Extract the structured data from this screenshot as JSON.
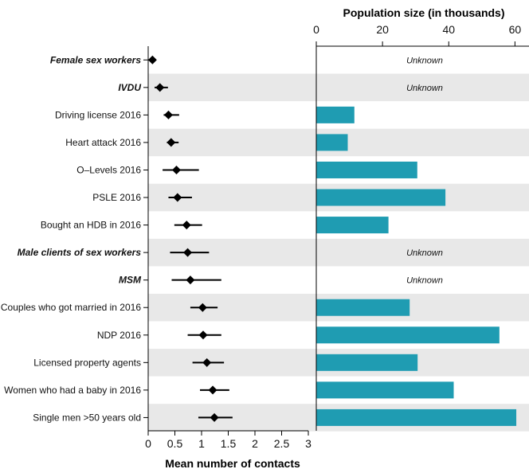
{
  "chart_data": [
    {
      "type": "scatter",
      "categories": [
        "Female sex workers",
        "IVDU",
        "Driving license 2016",
        "Heart attack 2016",
        "O–Levels 2016",
        "PSLE 2016",
        "Bought an HDB in 2016",
        "Male clients of sex workers",
        "MSM",
        "Couples who got married in 2016",
        "NDP 2016",
        "Licensed property agents",
        "Women who had a baby in 2016",
        "Single men >50 years old"
      ],
      "highlighted": [
        true,
        true,
        false,
        false,
        false,
        false,
        false,
        true,
        true,
        false,
        false,
        false,
        false,
        false
      ],
      "x": [
        0.08,
        0.22,
        0.38,
        0.43,
        0.53,
        0.55,
        0.72,
        0.74,
        0.79,
        1.02,
        1.03,
        1.1,
        1.21,
        1.24
      ],
      "x_low": [
        null,
        0.12,
        0.29,
        0.35,
        0.27,
        0.38,
        0.49,
        0.41,
        0.44,
        0.79,
        0.74,
        0.83,
        0.97,
        0.94
      ],
      "x_high": [
        null,
        0.37,
        0.58,
        0.57,
        0.95,
        0.82,
        1.01,
        1.14,
        1.37,
        1.3,
        1.37,
        1.42,
        1.52,
        1.58
      ],
      "xlabel": "Mean number of contacts",
      "xlim": [
        0,
        3
      ],
      "xticks": [
        "0",
        "0.5",
        "1",
        "1.5",
        "2",
        "2.5",
        "3"
      ],
      "grid": "alternating row bands"
    },
    {
      "type": "bar",
      "orientation": "horizontal",
      "categories": [
        "Female sex workers",
        "IVDU",
        "Driving license 2016",
        "Heart attack 2016",
        "O–Levels 2016",
        "PSLE 2016",
        "Bought an HDB in 2016",
        "Male clients of sex workers",
        "MSM",
        "Couples who got married in 2016",
        "NDP 2016",
        "Licensed property agents",
        "Women who had a baby in 2016",
        "Single men >50 years old"
      ],
      "values": [
        null,
        null,
        11.5,
        9.5,
        30.5,
        39,
        21.8,
        null,
        null,
        28.2,
        55.3,
        30.6,
        41.5,
        60.4
      ],
      "missing_label": "Unknown",
      "title": "Population size (in thousands)",
      "xlim": [
        0,
        64
      ],
      "xticks": [
        "0",
        "20",
        "40",
        "60"
      ],
      "bar_color": "#1f9cb2"
    }
  ],
  "colors": {
    "band": "#e8e8e8",
    "bar": "#1f9cb2",
    "marker": "#000000"
  }
}
